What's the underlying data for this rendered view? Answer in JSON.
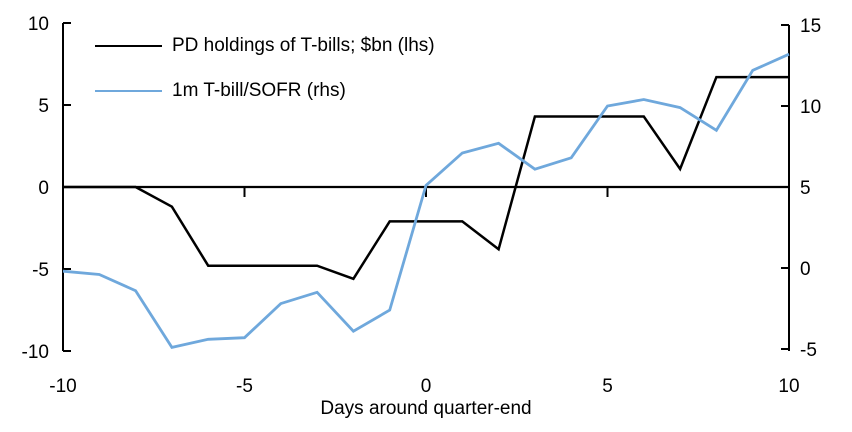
{
  "chart_data": {
    "type": "line",
    "title": "",
    "xlabel": "Days around quarter-end",
    "grid": false,
    "legend_position": "top-left-inside",
    "colors": {
      "background": "#FFFFFF",
      "axis": "#000000",
      "text": "#000000"
    },
    "x": [
      -10,
      -9,
      -8,
      -7,
      -6,
      -5,
      -4,
      -3,
      -2,
      -1,
      0,
      1,
      2,
      3,
      4,
      5,
      6,
      7,
      8,
      9,
      10
    ],
    "series": [
      {
        "name": "PD holdings of T-bills; $bn (lhs)",
        "axis": "left",
        "color": "#000000",
        "values": [
          0,
          0,
          0,
          -1.2,
          -4.8,
          -4.8,
          -4.8,
          -4.8,
          -5.6,
          -2.1,
          -2.1,
          -2.1,
          -3.8,
          4.3,
          4.3,
          4.3,
          4.3,
          1.1,
          6.7,
          6.7,
          6.7
        ]
      },
      {
        "name": "1m T-bill/SOFR (rhs)",
        "axis": "right",
        "color": "#6FA8DC",
        "values": [
          -0.2,
          -0.4,
          -1.4,
          -4.9,
          -4.4,
          -4.3,
          -2.2,
          -1.5,
          -3.9,
          -2.6,
          5.1,
          7.1,
          7.7,
          6.1,
          6.8,
          10.0,
          10.4,
          9.9,
          8.5,
          12.2,
          13.2
        ]
      }
    ],
    "left_axis": {
      "range": [
        -10,
        10
      ],
      "ticks": [
        10,
        5,
        0,
        -5,
        -10
      ],
      "tick_labels": [
        "10",
        "5",
        "0",
        "-5",
        "-10"
      ]
    },
    "right_axis": {
      "range": [
        -5,
        15
      ],
      "ticks": [
        15,
        10,
        5,
        0,
        -5
      ],
      "tick_labels": [
        "15",
        "10",
        "5",
        "0",
        "-5"
      ]
    },
    "x_axis": {
      "range": [
        -10,
        10
      ],
      "tick_labels": [
        "-10",
        "-5",
        "0",
        "5",
        "10"
      ],
      "tick_label_values": [
        -10,
        -5,
        0,
        5,
        10
      ],
      "inner_ticks": [
        -5,
        0,
        5
      ],
      "zero_line": true
    }
  }
}
